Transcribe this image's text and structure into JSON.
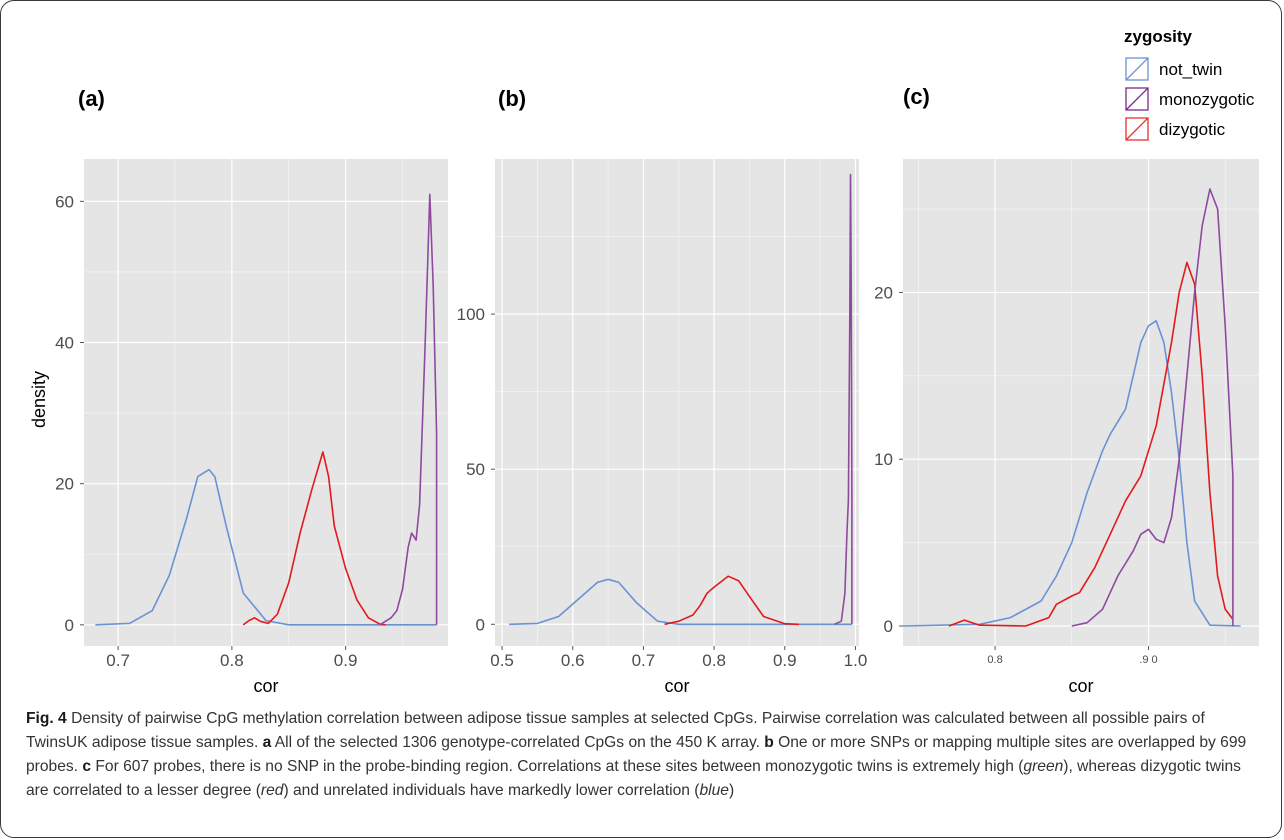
{
  "legend": {
    "title": "zygosity",
    "entries": [
      {
        "name": "not_twin",
        "color": "#6a92d4"
      },
      {
        "name": "monozygotic",
        "color": "#7b2a8c"
      },
      {
        "name": "dizygotic",
        "color": "#e8302c"
      }
    ]
  },
  "colors": {
    "panel_bg": "#e5e5e5",
    "grid": "#ffffff",
    "not_twin_line": "#6a92d4",
    "monozygotic_line": "#8e4a9e",
    "dizygotic_line": "#e31a1c"
  },
  "caption": {
    "fig_label": "Fig. 4",
    "text_1": " Density of pairwise CpG methylation correlation between adipose tissue samples at selected CpGs. Pairwise correlation was calculated between all possible pairs of TwinsUK adipose tissue samples. ",
    "a_label": "a",
    "text_a": " All of the selected 1306 genotype-correlated CpGs on the 450 K array. ",
    "b_label": "b",
    "text_b": " One or more SNPs or mapping multiple sites are overlapped by 699 probes. ",
    "c_label": "c",
    "text_c1": " For 607 probes, there is no SNP in the probe-binding region. Correlations at these sites between monozygotic twins is extremely high (",
    "green": "green",
    "text_c2": "), whereas dizygotic twins are correlated to a lesser degree (",
    "red": "red",
    "text_c3": ") and unrelated individuals have markedly lower correlation (",
    "blue": "blue",
    "text_c4": ")"
  },
  "chart_data": [
    {
      "type": "line",
      "panel": "(a)",
      "xlabel": "cor",
      "ylabel": "density",
      "xlim": [
        0.67,
        0.99
      ],
      "ylim": [
        -3,
        66
      ],
      "xticks": [
        0.7,
        0.8,
        0.9
      ],
      "xtick_labels": [
        "0.7",
        "0.8",
        "0.9"
      ],
      "yticks": [
        0,
        20,
        40,
        60
      ],
      "ytick_labels": [
        "0",
        "20",
        "40",
        "60"
      ],
      "grid": true,
      "series": [
        {
          "name": "not_twin",
          "color": "#6a92d4",
          "x": [
            0.68,
            0.71,
            0.73,
            0.745,
            0.76,
            0.77,
            0.78,
            0.785,
            0.795,
            0.81,
            0.83,
            0.85,
            0.98
          ],
          "y": [
            0,
            0.2,
            2,
            7,
            15,
            21,
            22,
            21,
            14,
            4.5,
            0.6,
            0,
            0
          ]
        },
        {
          "name": "dizygotic",
          "color": "#e31a1c",
          "x": [
            0.81,
            0.815,
            0.82,
            0.825,
            0.832,
            0.84,
            0.85,
            0.86,
            0.87,
            0.88,
            0.885,
            0.89,
            0.895,
            0.9,
            0.91,
            0.92,
            0.93,
            0.935
          ],
          "y": [
            0,
            0.6,
            1,
            0.5,
            0.2,
            1.5,
            6,
            13,
            19,
            24.5,
            21,
            14,
            11,
            8,
            3.5,
            1,
            0.1,
            0
          ]
        },
        {
          "name": "monozygotic",
          "color": "#8e4a9e",
          "x": [
            0.93,
            0.94,
            0.945,
            0.95,
            0.955,
            0.958,
            0.962,
            0.965,
            0.97,
            0.974,
            0.977,
            0.98,
            0.98
          ],
          "y": [
            0,
            1,
            2,
            5,
            11,
            13,
            12,
            17,
            40,
            61,
            48,
            27,
            0
          ]
        }
      ]
    },
    {
      "type": "line",
      "panel": "(b)",
      "xlabel": "cor",
      "ylabel": "",
      "xlim": [
        0.49,
        1.005
      ],
      "ylim": [
        -7,
        150
      ],
      "xticks": [
        0.5,
        0.6,
        0.7,
        0.8,
        0.9,
        1.0
      ],
      "xtick_labels": [
        "0.5",
        "0.6",
        "0.7",
        "0.8",
        "0.9",
        "1.0"
      ],
      "yticks": [
        0,
        50,
        100
      ],
      "ytick_labels": [
        "0",
        "50",
        "100"
      ],
      "grid": true,
      "series": [
        {
          "name": "not_twin",
          "color": "#6a92d4",
          "x": [
            0.51,
            0.55,
            0.58,
            0.61,
            0.635,
            0.65,
            0.665,
            0.69,
            0.72,
            0.75,
            0.995
          ],
          "y": [
            0,
            0.3,
            2.5,
            8.5,
            13.5,
            14.5,
            13.5,
            7,
            1,
            0,
            0
          ]
        },
        {
          "name": "dizygotic",
          "color": "#e31a1c",
          "x": [
            0.73,
            0.75,
            0.77,
            0.78,
            0.79,
            0.8,
            0.82,
            0.835,
            0.85,
            0.87,
            0.9,
            0.92
          ],
          "y": [
            0,
            1,
            3,
            6,
            10,
            12,
            15.5,
            14,
            9,
            2.5,
            0.2,
            0
          ]
        },
        {
          "name": "monozygotic",
          "color": "#8e4a9e",
          "x": [
            0.97,
            0.98,
            0.985,
            0.988,
            0.99,
            0.992,
            0.993,
            0.994,
            0.995,
            0.995
          ],
          "y": [
            0,
            1,
            10,
            30,
            40,
            100,
            145,
            110,
            40,
            0
          ]
        }
      ]
    },
    {
      "type": "line",
      "panel": "(c)",
      "xlabel": "cor",
      "ylabel": "",
      "xlim": [
        0.74,
        0.972
      ],
      "ylim": [
        -1.2,
        28
      ],
      "xticks": [
        0.8,
        0.9
      ],
      "xtick_labels": [
        "0.8",
        ".9 0"
      ],
      "yticks": [
        0,
        10,
        20
      ],
      "ytick_labels": [
        "0",
        "10",
        "20"
      ],
      "grid": true,
      "series": [
        {
          "name": "not_twin",
          "color": "#6a92d4",
          "x": [
            0.74,
            0.79,
            0.81,
            0.83,
            0.84,
            0.85,
            0.86,
            0.87,
            0.875,
            0.885,
            0.89,
            0.895,
            0.9,
            0.905,
            0.91,
            0.915,
            0.92,
            0.925,
            0.93,
            0.94,
            0.96
          ],
          "y": [
            0,
            0.1,
            0.5,
            1.5,
            3,
            5,
            8,
            10.5,
            11.5,
            13,
            15,
            17,
            18,
            18.3,
            17,
            14,
            10,
            5,
            1.5,
            0.05,
            0
          ]
        },
        {
          "name": "dizygotic",
          "color": "#e31a1c",
          "x": [
            0.77,
            0.78,
            0.79,
            0.82,
            0.835,
            0.84,
            0.85,
            0.855,
            0.865,
            0.875,
            0.885,
            0.895,
            0.905,
            0.915,
            0.92,
            0.925,
            0.93,
            0.935,
            0.94,
            0.945,
            0.95,
            0.955
          ],
          "y": [
            0,
            0.35,
            0.05,
            0,
            0.5,
            1.3,
            1.8,
            2,
            3.5,
            5.5,
            7.5,
            9,
            12,
            17,
            20,
            21.8,
            20.5,
            15,
            8,
            3,
            1,
            0.4
          ]
        },
        {
          "name": "monozygotic",
          "color": "#8e4a9e",
          "x": [
            0.85,
            0.86,
            0.87,
            0.875,
            0.88,
            0.89,
            0.895,
            0.9,
            0.905,
            0.91,
            0.915,
            0.92,
            0.925,
            0.93,
            0.935,
            0.94,
            0.945,
            0.95,
            0.955,
            0.955
          ],
          "y": [
            0,
            0.2,
            1,
            2,
            3,
            4.5,
            5.5,
            5.8,
            5.2,
            5,
            6.5,
            10,
            15,
            20,
            24,
            26.2,
            25,
            18,
            9,
            0
          ]
        }
      ]
    }
  ]
}
